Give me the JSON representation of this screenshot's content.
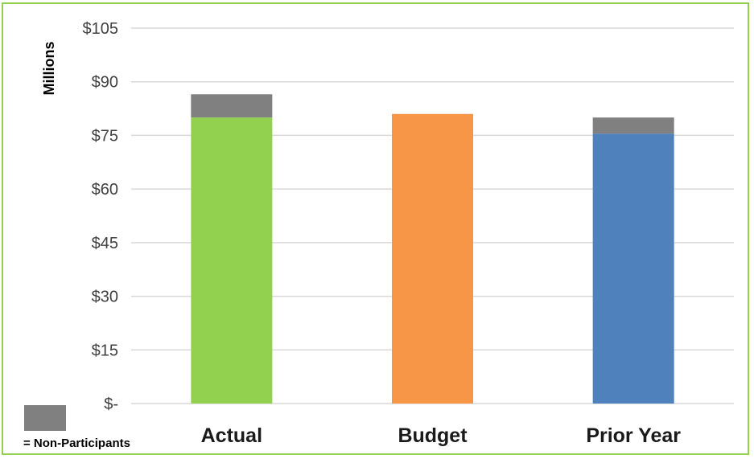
{
  "chart_data": {
    "type": "bar",
    "stacked": true,
    "title": "",
    "xlabel": "",
    "ylabel": "Millions",
    "categories": [
      "Actual",
      "Budget",
      "Prior Year"
    ],
    "base_values": [
      80,
      81,
      75.5
    ],
    "base_colors": [
      "#92d050",
      "#f79646",
      "#4f81bd"
    ],
    "series": [
      {
        "name": "",
        "values": [
          80,
          81,
          75.5
        ]
      },
      {
        "name": "Non-Participants",
        "values": [
          6.5,
          0,
          4.5
        ],
        "color": "#808080"
      }
    ],
    "ylim": [
      0,
      105
    ],
    "yticks": [
      0,
      15,
      30,
      45,
      60,
      75,
      90,
      105
    ],
    "ytick_labels": [
      "$-",
      "$15",
      "$30",
      "$45",
      "$60",
      "$75",
      "$90",
      "$105"
    ],
    "grid": true,
    "legend": {
      "placement": "bottom-left",
      "label": "= Non-Participants",
      "color": "#808080"
    }
  }
}
